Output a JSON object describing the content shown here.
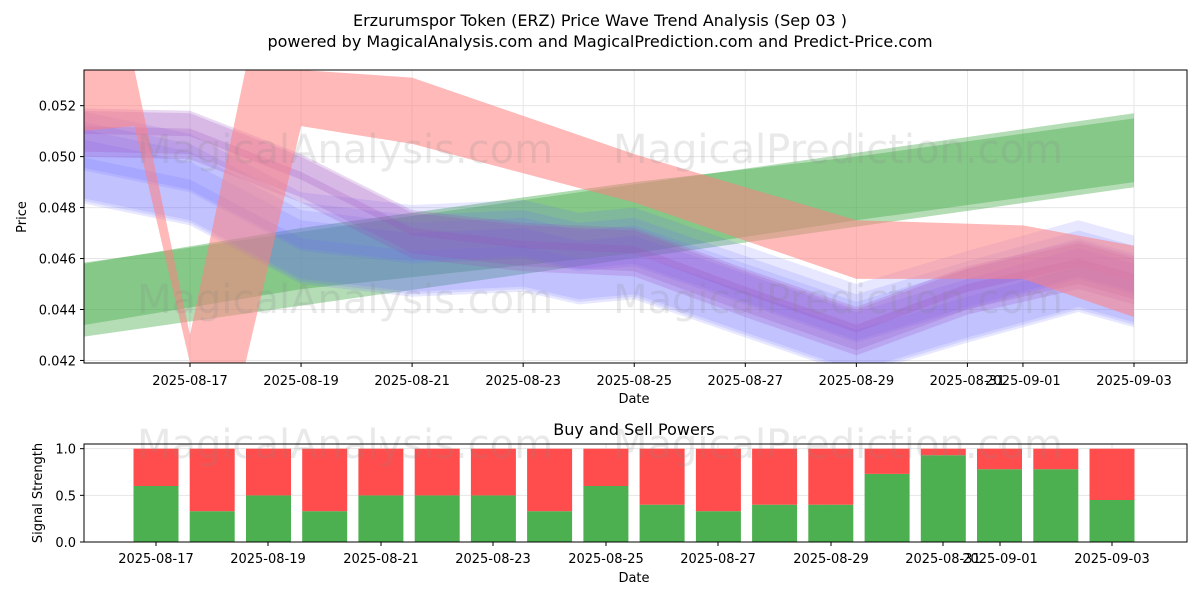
{
  "title_line1": "Erzurumspor Token (ERZ) Price Wave Trend Analysis (Sep 03 )",
  "title_line2": "powered by MagicalAnalysis.com and MagicalPrediction.com and Predict-Price.com",
  "watermarks": [
    "MagicalAnalysis.com",
    "MagicalPrediction.com"
  ],
  "colors": {
    "green": "#4caf50",
    "red": "#ff4d4d",
    "blue": "#6a6aff",
    "purple": "#9b4fc0",
    "pink": "#ff8080"
  },
  "chart_data": [
    {
      "type": "line",
      "xlabel": "Date",
      "ylabel": "Price",
      "ylim": [
        0.0419,
        0.0534
      ],
      "xlim": [
        "2025-08-14",
        "2025-09-04"
      ],
      "x_ticks": [
        "2025-08-17",
        "2025-08-19",
        "2025-08-21",
        "2025-08-23",
        "2025-08-25",
        "2025-08-27",
        "2025-08-29",
        "2025-08-31",
        "2025-09-01",
        "2025-09-03"
      ],
      "x_tick_labels": [
        "2025-08-17",
        "2025-08-19",
        "2025-08-21",
        "2025-08-23",
        "2025-08-25",
        "2025-08-27",
        "2025-08-29",
        "2025-08-31",
        "2025-09-01",
        "2025-09-03"
      ],
      "y_ticks": [
        0.042,
        0.044,
        0.046,
        0.048,
        0.05,
        0.052
      ],
      "y_tick_labels": [
        "0.042",
        "0.044",
        "0.046",
        "0.048",
        "0.050",
        "0.052"
      ],
      "grid": true,
      "series": [
        {
          "band": "green-wide",
          "x": [
            "2025-08-14",
            "2025-09-03"
          ],
          "upper": [
            0.0455,
            0.0517
          ],
          "lower": [
            0.0426,
            0.0488
          ]
        },
        {
          "band": "green-core",
          "x": [
            "2025-08-14",
            "2025-08-19",
            "2025-08-25",
            "2025-08-29",
            "2025-09-03"
          ],
          "upper": [
            0.0454,
            0.0472,
            0.049,
            0.05,
            0.0515
          ],
          "lower": [
            0.043,
            0.0448,
            0.0462,
            0.0475,
            0.049
          ]
        },
        {
          "band": "red",
          "x": [
            "2025-08-14",
            "2025-08-16",
            "2025-08-17",
            "2025-08-18",
            "2025-08-19",
            "2025-08-21",
            "2025-08-25",
            "2025-08-29",
            "2025-09-01",
            "2025-09-03"
          ],
          "upper": [
            0.0534,
            0.0534,
            0.043,
            0.0534,
            0.0534,
            0.0531,
            0.0501,
            0.0475,
            0.0473,
            0.0465
          ],
          "lower": [
            0.0508,
            0.0512,
            0.0419,
            0.0419,
            0.0512,
            0.0505,
            0.0482,
            0.0452,
            0.0452,
            0.0437
          ]
        },
        {
          "band": "blue",
          "x": [
            "2025-08-15",
            "2025-08-17",
            "2025-08-19",
            "2025-08-21",
            "2025-08-23",
            "2025-08-24",
            "2025-08-25",
            "2025-08-27",
            "2025-08-29",
            "2025-08-31",
            "2025-09-02",
            "2025-09-03"
          ],
          "center": [
            0.0499,
            0.049,
            0.0467,
            0.0462,
            0.0464,
            0.0459,
            0.0461,
            0.0446,
            0.0431,
            0.0444,
            0.0456,
            0.045
          ]
        },
        {
          "band": "purple",
          "x": [
            "2025-08-15",
            "2025-08-17",
            "2025-08-19",
            "2025-08-21",
            "2025-08-23",
            "2025-08-25",
            "2025-08-27",
            "2025-08-29",
            "2025-08-31",
            "2025-09-02",
            "2025-09-03"
          ],
          "center": [
            0.051,
            0.0509,
            0.0492,
            0.047,
            0.0465,
            0.0463,
            0.0447,
            0.0432,
            0.0448,
            0.0458,
            0.0452
          ]
        }
      ]
    },
    {
      "type": "bar",
      "title": "Buy and Sell Powers",
      "xlabel": "Date",
      "ylabel": "Signal Strength",
      "ylim": [
        0,
        1.05
      ],
      "y_ticks": [
        0.0,
        0.5,
        1.0
      ],
      "y_tick_labels": [
        "0.0",
        "0.5",
        "1.0"
      ],
      "x_tick_labels": [
        "2025-08-17",
        "2025-08-19",
        "2025-08-21",
        "2025-08-23",
        "2025-08-25",
        "2025-08-27",
        "2025-08-29",
        "2025-08-31",
        "2025-09-01",
        "2025-09-03"
      ],
      "categories": [
        "2025-08-16",
        "2025-08-17",
        "2025-08-18",
        "2025-08-19",
        "2025-08-20",
        "2025-08-21",
        "2025-08-22",
        "2025-08-23",
        "2025-08-24",
        "2025-08-25",
        "2025-08-26",
        "2025-08-27",
        "2025-08-28",
        "2025-08-29",
        "2025-08-30",
        "2025-08-31",
        "2025-09-01",
        "2025-09-02"
      ],
      "series": [
        {
          "name": "buy",
          "color": "#4caf50",
          "values": [
            0.6,
            0.33,
            0.5,
            0.33,
            0.5,
            0.5,
            0.5,
            0.33,
            0.6,
            0.4,
            0.33,
            0.4,
            0.4,
            0.73,
            0.93,
            0.78,
            0.78,
            0.45
          ]
        },
        {
          "name": "sell",
          "color": "#ff4d4d",
          "values": [
            0.4,
            0.67,
            0.5,
            0.67,
            0.5,
            0.5,
            0.5,
            0.67,
            0.4,
            0.6,
            0.67,
            0.6,
            0.6,
            0.27,
            0.07,
            0.22,
            0.22,
            0.55
          ]
        }
      ]
    }
  ]
}
